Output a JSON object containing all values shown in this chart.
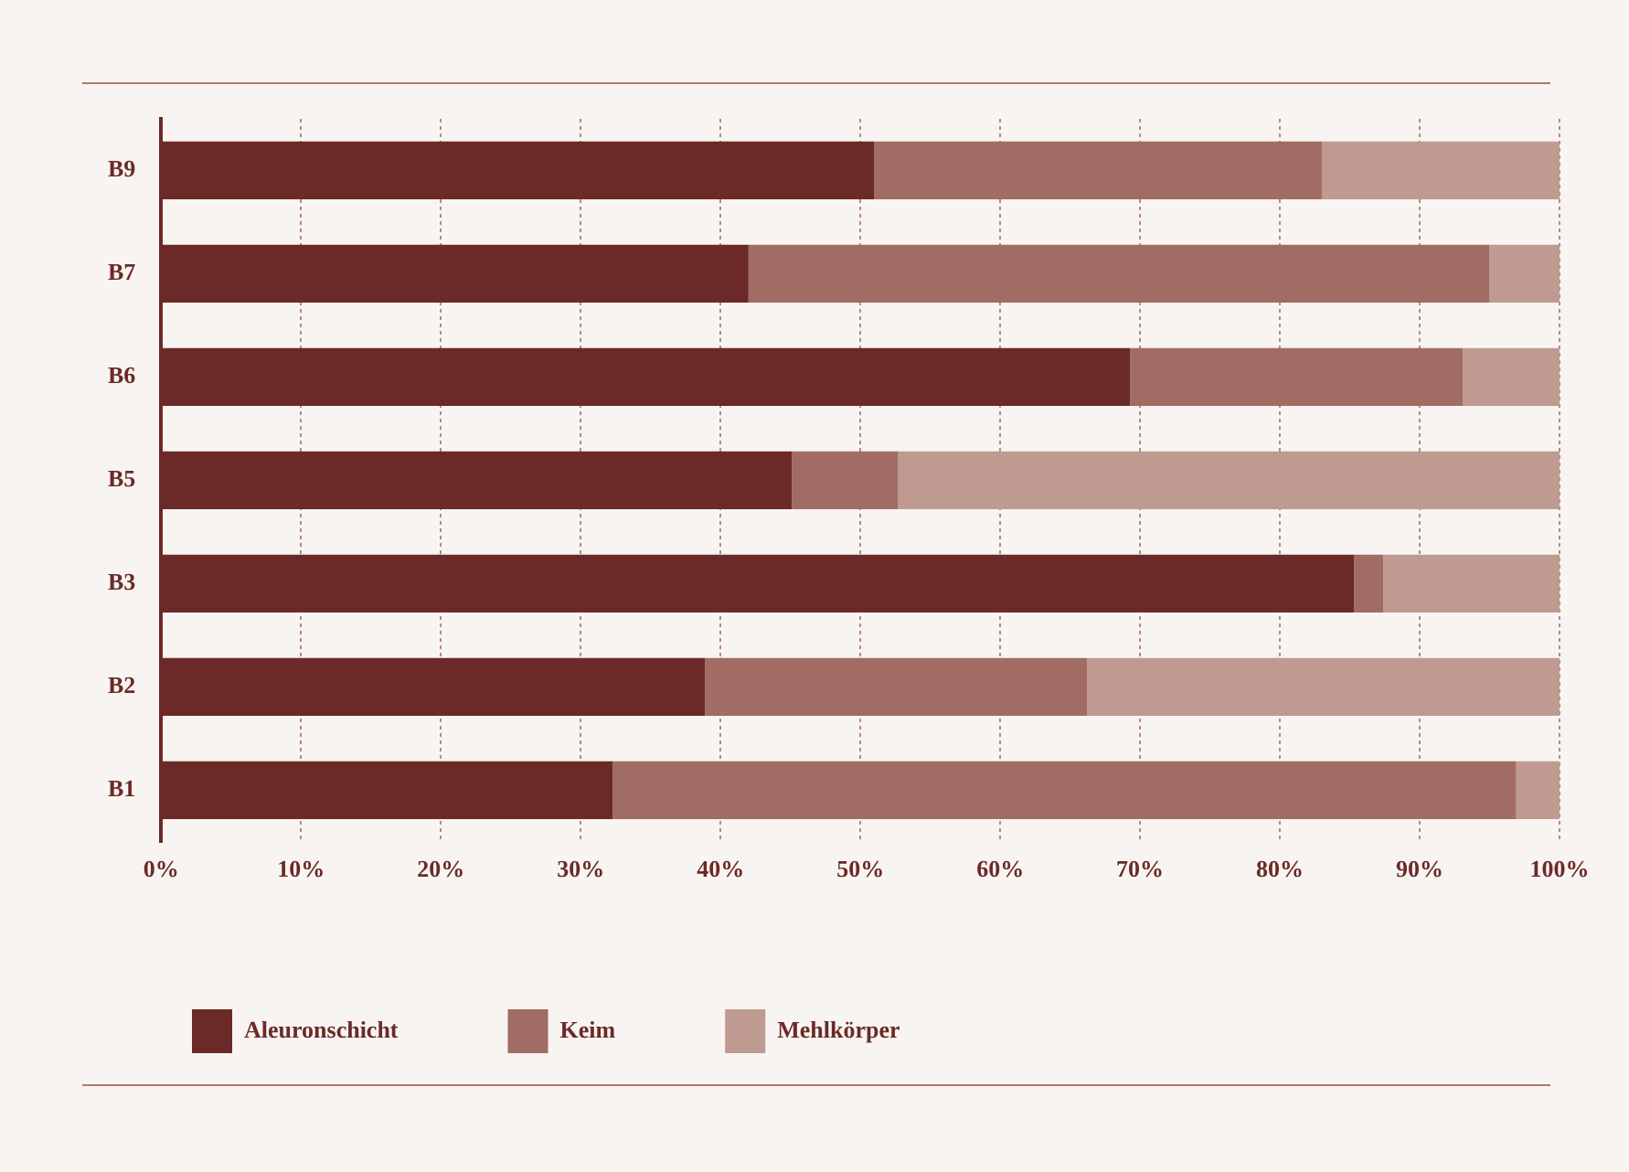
{
  "chart_data": {
    "type": "bar",
    "orientation": "horizontal",
    "stacked": true,
    "categories": [
      "B9",
      "B7",
      "B6",
      "B5",
      "B3",
      "B2",
      "B1"
    ],
    "series": [
      {
        "name": "Aleuronschicht",
        "color": "#6b2a27",
        "values": [
          51,
          42,
          69.3,
          45.1,
          85.3,
          38.9,
          32.3
        ]
      },
      {
        "name": "Keim",
        "color": "#a06c63",
        "values": [
          32,
          53,
          23.8,
          7.6,
          2.1,
          27.3,
          64.6
        ]
      },
      {
        "name": "Mehlkörper",
        "color": "#bf9a91",
        "values": [
          17,
          5,
          6.9,
          47.3,
          12.6,
          33.8,
          3.1
        ]
      }
    ],
    "xlim": [
      0,
      100
    ],
    "xticks": [
      {
        "value": 0,
        "label": "0%"
      },
      {
        "value": 10,
        "label": "10%"
      },
      {
        "value": 20,
        "label": "20%"
      },
      {
        "value": 30,
        "label": "30%"
      },
      {
        "value": 40,
        "label": "40%"
      },
      {
        "value": 50,
        "label": "50%"
      },
      {
        "value": 60,
        "label": "60%"
      },
      {
        "value": 70,
        "label": "70%"
      },
      {
        "value": 80,
        "label": "80%"
      },
      {
        "value": 90,
        "label": "90%"
      },
      {
        "value": 100,
        "label": "100%"
      }
    ],
    "grid": "x",
    "legend": "bottom left"
  }
}
